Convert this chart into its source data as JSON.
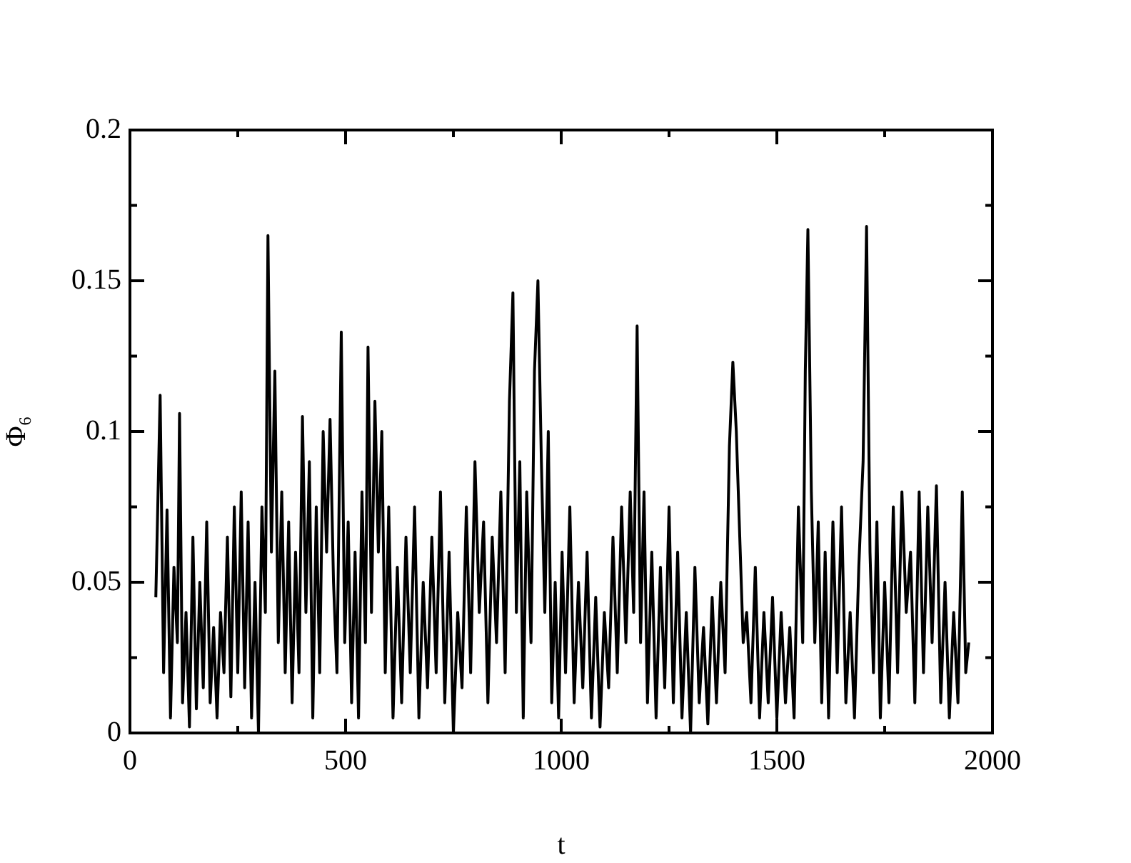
{
  "chart_data": {
    "type": "line",
    "xlabel": "t",
    "ylabel": "Φ₆",
    "xlim": [
      0,
      2000
    ],
    "ylim": [
      0,
      0.2
    ],
    "xticks": [
      0,
      {
        "value": 250,
        "label": null
      },
      500,
      {
        "value": 750,
        "label": null
      },
      1000,
      {
        "value": 1250,
        "label": null
      },
      1500,
      {
        "value": 1750,
        "label": null
      },
      2000
    ],
    "yticks": [
      0,
      {
        "value": 0.025,
        "label": null
      },
      0.05,
      {
        "value": 0.075,
        "label": null
      },
      0.1,
      {
        "value": 0.125,
        "label": null
      },
      0.15,
      {
        "value": 0.175,
        "label": null
      },
      0.2
    ],
    "grid": false,
    "legend": false,
    "marker": "none",
    "line_style": "solid",
    "series": [
      {
        "color": "#000000",
        "x": [
          60,
          70,
          78,
          86,
          94,
          102,
          110,
          115,
          122,
          130,
          138,
          146,
          154,
          162,
          170,
          178,
          186,
          194,
          202,
          210,
          218,
          226,
          234,
          242,
          250,
          258,
          266,
          274,
          282,
          290,
          298,
          306,
          314,
          320,
          328,
          336,
          344,
          352,
          360,
          368,
          376,
          384,
          392,
          400,
          408,
          416,
          424,
          432,
          440,
          448,
          456,
          464,
          472,
          480,
          490,
          498,
          506,
          514,
          522,
          530,
          538,
          546,
          552,
          560,
          568,
          576,
          584,
          592,
          600,
          610,
          620,
          630,
          640,
          650,
          660,
          670,
          680,
          690,
          700,
          710,
          720,
          730,
          740,
          750,
          760,
          770,
          780,
          790,
          800,
          810,
          820,
          830,
          840,
          850,
          860,
          870,
          880,
          888,
          896,
          904,
          912,
          920,
          930,
          938,
          946,
          954,
          962,
          970,
          978,
          986,
          994,
          1002,
          1010,
          1020,
          1030,
          1040,
          1050,
          1060,
          1070,
          1080,
          1090,
          1100,
          1110,
          1120,
          1130,
          1140,
          1150,
          1160,
          1168,
          1176,
          1184,
          1192,
          1200,
          1210,
          1220,
          1230,
          1240,
          1250,
          1260,
          1270,
          1280,
          1290,
          1300,
          1310,
          1320,
          1330,
          1340,
          1350,
          1360,
          1370,
          1380,
          1390,
          1398,
          1406,
          1414,
          1422,
          1430,
          1440,
          1450,
          1460,
          1470,
          1480,
          1490,
          1500,
          1510,
          1520,
          1530,
          1540,
          1550,
          1560,
          1566,
          1572,
          1580,
          1588,
          1596,
          1604,
          1612,
          1620,
          1630,
          1640,
          1650,
          1660,
          1670,
          1680,
          1690,
          1700,
          1708,
          1716,
          1724,
          1732,
          1740,
          1750,
          1760,
          1770,
          1780,
          1790,
          1800,
          1810,
          1820,
          1830,
          1840,
          1850,
          1860,
          1870,
          1880,
          1890,
          1900,
          1910,
          1920,
          1930,
          1938,
          1945
        ],
        "values": [
          0.045,
          0.112,
          0.02,
          0.074,
          0.005,
          0.055,
          0.03,
          0.106,
          0.01,
          0.04,
          0.002,
          0.065,
          0.008,
          0.05,
          0.015,
          0.07,
          0.01,
          0.035,
          0.005,
          0.04,
          0.02,
          0.065,
          0.012,
          0.075,
          0.02,
          0.08,
          0.015,
          0.07,
          0.005,
          0.05,
          0.0,
          0.075,
          0.04,
          0.165,
          0.06,
          0.12,
          0.03,
          0.08,
          0.02,
          0.07,
          0.01,
          0.06,
          0.02,
          0.105,
          0.04,
          0.09,
          0.005,
          0.075,
          0.02,
          0.1,
          0.06,
          0.104,
          0.05,
          0.02,
          0.133,
          0.03,
          0.07,
          0.01,
          0.06,
          0.005,
          0.08,
          0.03,
          0.128,
          0.04,
          0.11,
          0.06,
          0.1,
          0.02,
          0.075,
          0.005,
          0.055,
          0.01,
          0.065,
          0.02,
          0.075,
          0.005,
          0.05,
          0.015,
          0.065,
          0.02,
          0.08,
          0.01,
          0.06,
          0.0,
          0.04,
          0.015,
          0.075,
          0.02,
          0.09,
          0.04,
          0.07,
          0.01,
          0.065,
          0.03,
          0.08,
          0.02,
          0.11,
          0.146,
          0.04,
          0.09,
          0.005,
          0.08,
          0.03,
          0.12,
          0.15,
          0.09,
          0.04,
          0.1,
          0.01,
          0.05,
          0.005,
          0.06,
          0.02,
          0.075,
          0.01,
          0.05,
          0.015,
          0.06,
          0.005,
          0.045,
          0.002,
          0.04,
          0.015,
          0.065,
          0.02,
          0.075,
          0.03,
          0.08,
          0.04,
          0.135,
          0.03,
          0.08,
          0.01,
          0.06,
          0.005,
          0.055,
          0.015,
          0.075,
          0.01,
          0.06,
          0.005,
          0.04,
          0.0,
          0.055,
          0.01,
          0.035,
          0.003,
          0.045,
          0.01,
          0.05,
          0.02,
          0.095,
          0.123,
          0.1,
          0.065,
          0.03,
          0.04,
          0.01,
          0.055,
          0.005,
          0.04,
          0.01,
          0.045,
          0.005,
          0.04,
          0.01,
          0.035,
          0.005,
          0.075,
          0.03,
          0.12,
          0.167,
          0.08,
          0.03,
          0.07,
          0.01,
          0.06,
          0.005,
          0.07,
          0.02,
          0.075,
          0.01,
          0.04,
          0.005,
          0.055,
          0.09,
          0.168,
          0.06,
          0.02,
          0.07,
          0.005,
          0.05,
          0.01,
          0.075,
          0.02,
          0.08,
          0.04,
          0.06,
          0.01,
          0.08,
          0.02,
          0.075,
          0.03,
          0.082,
          0.01,
          0.05,
          0.005,
          0.04,
          0.01,
          0.08,
          0.02,
          0.03
        ]
      }
    ]
  }
}
